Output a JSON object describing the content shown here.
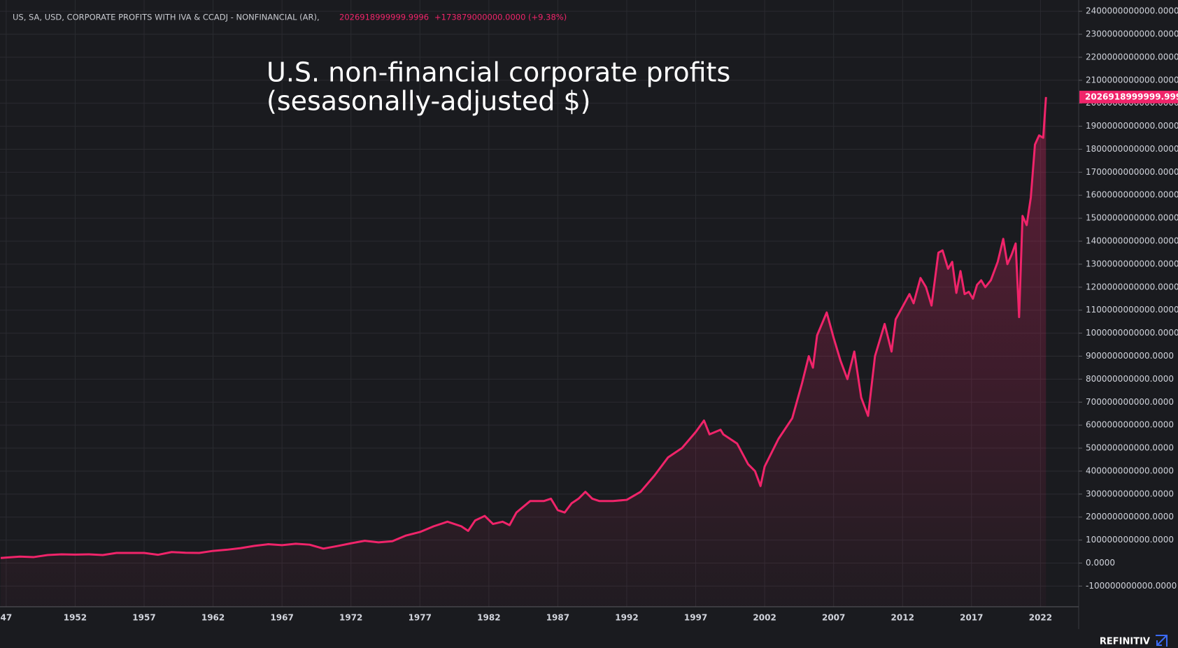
{
  "chart_data": {
    "type": "line",
    "header": {
      "series_label": "US, SA, USD, CORPORATE PROFITS WITH IVA & CCADJ - NONFINANCIAL (AR),",
      "value_text": "2026918999999.9996",
      "change_text": "+173879000000.0000 (+9.38%)"
    },
    "annotation": [
      "U.S. non-financial corporate profits",
      "(sesasonally-adjusted $)"
    ],
    "brand": "REFINITIV",
    "xlim": [
      1946.55,
      2024.77
    ],
    "ylim": [
      -190000000000.0,
      2449000000000.0
    ],
    "xticks": [
      {
        "value": 1947,
        "label": "47"
      },
      1952,
      1957,
      1962,
      1967,
      1972,
      1977,
      1982,
      1987,
      1992,
      1997,
      2002,
      2007,
      2012,
      2017,
      2022
    ],
    "yticks": [
      {
        "value": -100000000000.0,
        "label": "-100000000000.0000"
      },
      {
        "value": 0,
        "label": "0.0000"
      },
      {
        "value": 100000000000.0,
        "label": "100000000000.0000"
      },
      {
        "value": 200000000000.0,
        "label": "200000000000.0000"
      },
      {
        "value": 300000000000.0,
        "label": "300000000000.0000"
      },
      {
        "value": 400000000000.0,
        "label": "400000000000.0000"
      },
      {
        "value": 500000000000.0,
        "label": "500000000000.0000"
      },
      {
        "value": 600000000000.0,
        "label": "600000000000.0000"
      },
      {
        "value": 700000000000.0,
        "label": "700000000000.0000"
      },
      {
        "value": 800000000000.0,
        "label": "800000000000.0000"
      },
      {
        "value": 900000000000.0,
        "label": "900000000000.0000"
      },
      {
        "value": 1000000000000.0,
        "label": "1000000000000.0000"
      },
      {
        "value": 1100000000000.0,
        "label": "1100000000000.0000"
      },
      {
        "value": 1200000000000.0,
        "label": "1200000000000.0000"
      },
      {
        "value": 1300000000000.0,
        "label": "1300000000000.0000"
      },
      {
        "value": 1400000000000.0,
        "label": "1400000000000.0000"
      },
      {
        "value": 1500000000000.0,
        "label": "1500000000000.0000"
      },
      {
        "value": 1600000000000.0,
        "label": "1600000000000.0000"
      },
      {
        "value": 1700000000000.0,
        "label": "1700000000000.0000"
      },
      {
        "value": 1800000000000.0,
        "label": "1800000000000.0000"
      },
      {
        "value": 1900000000000.0,
        "label": "1900000000000.0000"
      },
      {
        "value": 2000000000000.0,
        "label": "2000000000000.0000"
      },
      {
        "value": 2100000000000.0,
        "label": "2100000000000.0000"
      },
      {
        "value": 2200000000000.0,
        "label": "2200000000000.0000"
      },
      {
        "value": 2300000000000.0,
        "label": "2300000000000.0000"
      },
      {
        "value": 2400000000000.0,
        "label": "2400000000000.0000"
      }
    ],
    "grid": true,
    "color": "#f0246a",
    "x": [
      1946.6,
      1947,
      1948,
      1949,
      1950,
      1951,
      1952,
      1953,
      1954,
      1955,
      1956,
      1957,
      1958,
      1959,
      1960,
      1961,
      1962,
      1963,
      1964,
      1965,
      1966,
      1967,
      1968,
      1969,
      1970,
      1971,
      1972,
      1973,
      1974,
      1975,
      1976,
      1977,
      1978,
      1979,
      1980,
      1980.5,
      1981,
      1981.7,
      1982.3,
      1983,
      1983.5,
      1984,
      1985,
      1986,
      1986.5,
      1987,
      1987.5,
      1988,
      1988.5,
      1989,
      1989.5,
      1990,
      1991,
      1992,
      1993,
      1994,
      1995,
      1996,
      1997,
      1997.6,
      1998,
      1998.8,
      1999,
      2000,
      2000.8,
      2001.3,
      2001.7,
      2002,
      2003,
      2004,
      2004.7,
      2005.2,
      2005.5,
      2005.8,
      2006.5,
      2007,
      2007.5,
      2008,
      2008.5,
      2009,
      2009.5,
      2010,
      2010.7,
      2011.2,
      2011.5,
      2012.5,
      2012.8,
      2013.3,
      2013.7,
      2014.1,
      2014.6,
      2014.9,
      2015.3,
      2015.6,
      2015.9,
      2016.2,
      2016.5,
      2016.8,
      2017.1,
      2017.4,
      2017.7,
      2018,
      2018.4,
      2018.9,
      2019.3,
      2019.6,
      2019.9,
      2020.2,
      2020.45,
      2020.7,
      2021,
      2021.3,
      2021.6,
      2021.9,
      2022.2,
      2022.4
    ],
    "values": [
      22000000000.0,
      24000000000.0,
      28000000000.0,
      26000000000.0,
      35000000000.0,
      38000000000.0,
      37000000000.0,
      38000000000.0,
      35000000000.0,
      44000000000.0,
      44000000000.0,
      44000000000.0,
      36000000000.0,
      48000000000.0,
      45000000000.0,
      44000000000.0,
      53000000000.0,
      58000000000.0,
      65000000000.0,
      75000000000.0,
      82000000000.0,
      78000000000.0,
      84000000000.0,
      80000000000.0,
      63000000000.0,
      74000000000.0,
      86000000000.0,
      97000000000.0,
      90000000000.0,
      95000000000.0,
      120000000000.0,
      135000000000.0,
      160000000000.0,
      180000000000.0,
      160000000000.0,
      140000000000.0,
      185000000000.0,
      205000000000.0,
      170000000000.0,
      180000000000.0,
      165000000000.0,
      220000000000.0,
      270000000000.0,
      270000000000.0,
      280000000000.0,
      230000000000.0,
      220000000000.0,
      260000000000.0,
      280000000000.0,
      310000000000.0,
      280000000000.0,
      270000000000.0,
      270000000000.0,
      275000000000.0,
      310000000000.0,
      380000000000.0,
      460000000000.0,
      500000000000.0,
      570000000000.0,
      620000000000.0,
      560000000000.0,
      580000000000.0,
      560000000000.0,
      520000000000.0,
      430000000000.0,
      400000000000.0,
      335000000000.0,
      420000000000.0,
      540000000000.0,
      630000000000.0,
      780000000000.0,
      900000000000.0,
      850000000000.0,
      990000000000.0,
      1090000000000.0,
      980000000000.0,
      880000000000.0,
      800000000000.0,
      920000000000.0,
      720000000000.0,
      640000000000.0,
      900000000000.0,
      1040000000000.0,
      920000000000.0,
      1060000000000.0,
      1170000000000.0,
      1130000000000.0,
      1240000000000.0,
      1200000000000.0,
      1120000000000.0,
      1350000000000.0,
      1360000000000.0,
      1280000000000.0,
      1310000000000.0,
      1175000000000.0,
      1270000000000.0,
      1170000000000.0,
      1180000000000.0,
      1150000000000.0,
      1210000000000.0,
      1230000000000.0,
      1200000000000.0,
      1230000000000.0,
      1310000000000.0,
      1410000000000.0,
      1300000000000.0,
      1340000000000.0,
      1390000000000.0,
      1070000000000.0,
      1510000000000.0,
      1470000000000.0,
      1590000000000.0,
      1820000000000.0,
      1860000000000.0,
      1850000000000.0,
      2026918999999.9995
    ]
  }
}
